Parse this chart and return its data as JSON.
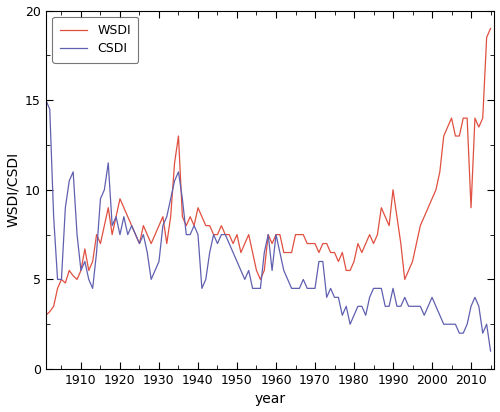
{
  "xlabel": "year",
  "ylabel": "WSDI/CSDI",
  "xlim": [
    1901,
    2016
  ],
  "ylim": [
    0,
    20
  ],
  "yticks": [
    0,
    5,
    10,
    15,
    20
  ],
  "xticks": [
    1910,
    1920,
    1930,
    1940,
    1950,
    1960,
    1970,
    1980,
    1990,
    2000,
    2010
  ],
  "wsdi_color": "#e05040",
  "csdi_color": "#6060b0",
  "linewidth": 0.9,
  "years": [
    1901,
    1902,
    1903,
    1904,
    1905,
    1906,
    1907,
    1908,
    1909,
    1910,
    1911,
    1912,
    1913,
    1914,
    1915,
    1916,
    1917,
    1918,
    1919,
    1920,
    1921,
    1922,
    1923,
    1924,
    1925,
    1926,
    1927,
    1928,
    1929,
    1930,
    1931,
    1932,
    1933,
    1934,
    1935,
    1936,
    1937,
    1938,
    1939,
    1940,
    1941,
    1942,
    1943,
    1944,
    1945,
    1946,
    1947,
    1948,
    1949,
    1950,
    1951,
    1952,
    1953,
    1954,
    1955,
    1956,
    1957,
    1958,
    1959,
    1960,
    1961,
    1962,
    1963,
    1964,
    1965,
    1966,
    1967,
    1968,
    1969,
    1970,
    1971,
    1972,
    1973,
    1974,
    1975,
    1976,
    1977,
    1978,
    1979,
    1980,
    1981,
    1982,
    1983,
    1984,
    1985,
    1986,
    1987,
    1988,
    1989,
    1990,
    1991,
    1992,
    1993,
    1994,
    1995,
    1996,
    1997,
    1998,
    1999,
    2000,
    2001,
    2002,
    2003,
    2004,
    2005,
    2006,
    2007,
    2008,
    2009,
    2010,
    2011,
    2012,
    2013,
    2014,
    2015
  ],
  "wsdi": [
    3.0,
    3.2,
    3.5,
    4.5,
    5.0,
    4.8,
    5.5,
    5.2,
    5.0,
    5.5,
    6.7,
    5.5,
    6.0,
    7.5,
    7.0,
    8.0,
    9.0,
    7.5,
    8.5,
    9.5,
    9.0,
    8.5,
    8.0,
    7.5,
    7.0,
    8.0,
    7.5,
    7.0,
    7.5,
    8.0,
    8.5,
    7.0,
    8.5,
    11.5,
    13.0,
    8.5,
    8.0,
    8.5,
    8.0,
    9.0,
    8.5,
    8.0,
    8.0,
    7.5,
    7.5,
    8.0,
    7.5,
    7.5,
    7.0,
    7.5,
    6.5,
    7.0,
    7.5,
    6.5,
    5.5,
    5.0,
    5.5,
    7.5,
    7.0,
    7.5,
    7.5,
    6.5,
    6.5,
    6.5,
    7.5,
    7.5,
    7.5,
    7.0,
    7.0,
    7.0,
    6.5,
    7.0,
    7.0,
    6.5,
    6.5,
    6.0,
    6.5,
    5.5,
    5.5,
    6.0,
    7.0,
    6.5,
    7.0,
    7.5,
    7.0,
    7.5,
    9.0,
    8.5,
    8.0,
    10.0,
    8.5,
    7.0,
    5.0,
    5.5,
    6.0,
    7.0,
    8.0,
    8.5,
    9.0,
    9.5,
    10.0,
    11.0,
    13.0,
    13.5,
    14.0,
    13.0,
    13.0,
    14.0,
    14.0,
    9.0,
    14.0,
    13.5,
    14.0,
    18.5,
    19.0
  ],
  "csdi": [
    15.0,
    14.5,
    8.5,
    5.0,
    5.0,
    9.0,
    10.5,
    11.0,
    7.5,
    5.5,
    6.0,
    5.0,
    4.5,
    6.5,
    9.5,
    10.0,
    11.5,
    8.0,
    8.5,
    7.5,
    8.5,
    7.5,
    8.0,
    7.5,
    7.0,
    7.5,
    6.5,
    5.0,
    5.5,
    6.0,
    8.0,
    8.5,
    9.5,
    10.5,
    11.0,
    9.5,
    7.5,
    7.5,
    8.0,
    7.5,
    4.5,
    5.0,
    6.5,
    7.5,
    7.0,
    7.5,
    7.5,
    7.0,
    6.5,
    6.0,
    5.5,
    5.0,
    5.5,
    4.5,
    4.5,
    4.5,
    6.5,
    7.5,
    5.5,
    7.5,
    6.5,
    5.5,
    5.0,
    4.5,
    4.5,
    4.5,
    5.0,
    4.5,
    4.5,
    4.5,
    6.0,
    6.0,
    4.0,
    4.5,
    4.0,
    4.0,
    3.0,
    3.5,
    2.5,
    3.0,
    3.5,
    3.5,
    3.0,
    4.0,
    4.5,
    4.5,
    4.5,
    3.5,
    3.5,
    4.5,
    3.5,
    3.5,
    4.0,
    3.5,
    3.5,
    3.5,
    3.5,
    3.0,
    3.5,
    4.0,
    3.5,
    3.0,
    2.5,
    2.5,
    2.5,
    2.5,
    2.0,
    2.0,
    2.5,
    3.5,
    4.0,
    3.5,
    2.0,
    2.5,
    1.0
  ]
}
